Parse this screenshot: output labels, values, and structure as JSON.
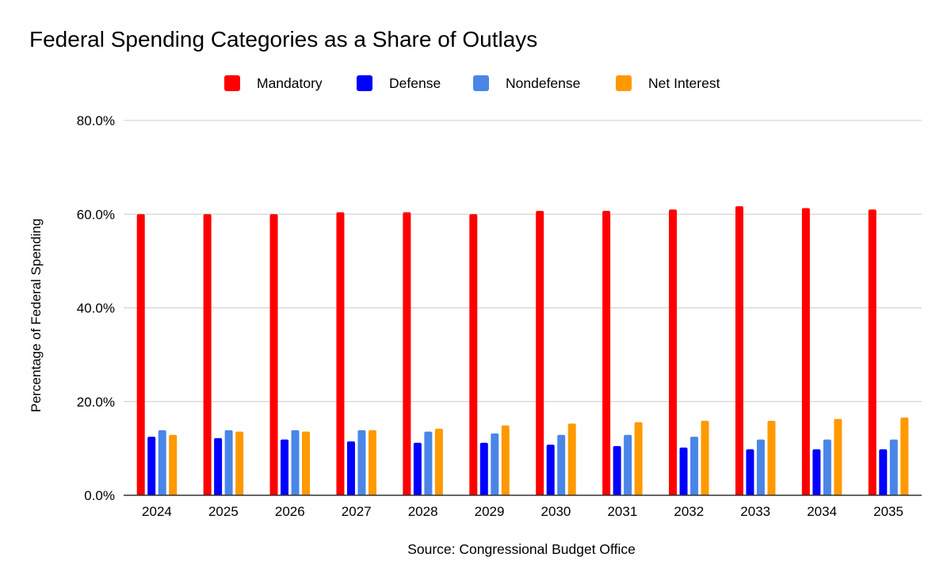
{
  "chart_data": {
    "type": "bar",
    "title": "Federal Spending Categories as a Share of Outlays",
    "xlabel": "Source: Congressional Budget Office",
    "ylabel": "Percentage of Federal Spending",
    "ylim": [
      0,
      80
    ],
    "yticks": [
      "0.0%",
      "20.0%",
      "40.0%",
      "60.0%",
      "80.0%"
    ],
    "grid": true,
    "legend_position": "top",
    "categories": [
      "2024",
      "2025",
      "2026",
      "2027",
      "2028",
      "2029",
      "2030",
      "2031",
      "2032",
      "2033",
      "2034",
      "2035"
    ],
    "series": [
      {
        "name": "Mandatory",
        "color": "#ff0000",
        "values": [
          60.0,
          60.0,
          60.0,
          60.4,
          60.4,
          60.0,
          60.7,
          60.7,
          61.0,
          61.7,
          61.3,
          61.0
        ]
      },
      {
        "name": "Defense",
        "color": "#0000ff",
        "values": [
          12.5,
          12.2,
          11.9,
          11.5,
          11.2,
          11.2,
          10.8,
          10.5,
          10.2,
          9.8,
          9.8,
          9.8
        ]
      },
      {
        "name": "Nondefense",
        "color": "#4a86e8",
        "values": [
          13.9,
          13.9,
          13.9,
          13.9,
          13.6,
          13.2,
          12.9,
          12.9,
          12.5,
          11.9,
          11.9,
          11.9
        ]
      },
      {
        "name": "Net Interest",
        "color": "#ff9900",
        "values": [
          12.9,
          13.6,
          13.6,
          13.9,
          14.2,
          14.9,
          15.3,
          15.6,
          15.9,
          15.9,
          16.3,
          16.6
        ]
      }
    ]
  }
}
